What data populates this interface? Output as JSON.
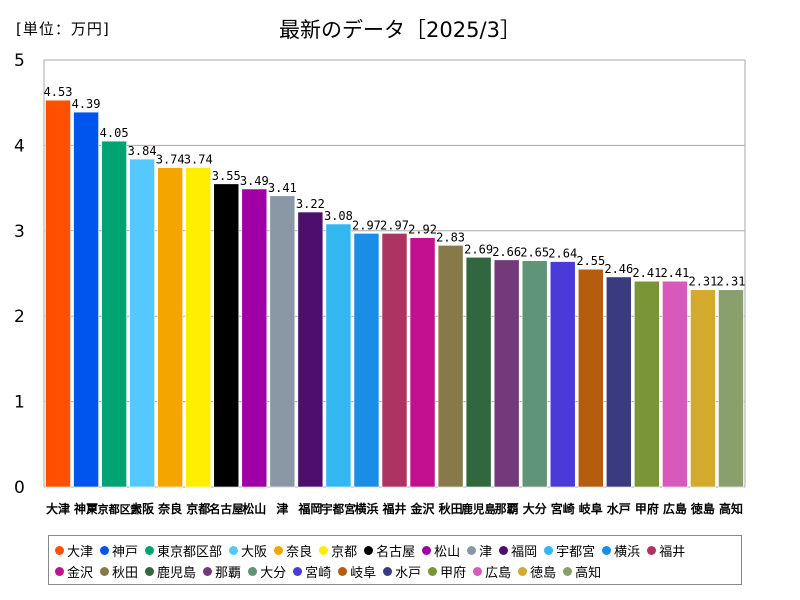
{
  "header": {
    "unit": "[単位：万円]",
    "title": "最新のデータ［2025/3］"
  },
  "chart_data": {
    "type": "bar",
    "title": "最新のデータ［2025/3］",
    "unit_label": "[単位：万円]",
    "xlabel": "",
    "ylabel": "",
    "ylim": [
      0,
      5
    ],
    "yticks": [
      0,
      1,
      2,
      3,
      4,
      5
    ],
    "grid": true,
    "legend_position": "bottom",
    "categories": [
      "大津",
      "神戸",
      "東京都区部",
      "大阪",
      "奈良",
      "京都",
      "名古屋",
      "松山",
      "津",
      "福岡",
      "宇都宮",
      "横浜",
      "福井",
      "金沢",
      "秋田",
      "鹿児島",
      "那覇",
      "大分",
      "宮崎",
      "岐阜",
      "水戸",
      "甲府",
      "広島",
      "徳島",
      "高知"
    ],
    "values": [
      4.53,
      4.39,
      4.05,
      3.84,
      3.74,
      3.74,
      3.55,
      3.49,
      3.41,
      3.22,
      3.08,
      2.97,
      2.97,
      2.92,
      2.83,
      2.69,
      2.66,
      2.65,
      2.64,
      2.55,
      2.46,
      2.41,
      2.41,
      2.31,
      2.31
    ],
    "colors": [
      "#ff5000",
      "#0055ee",
      "#00a373",
      "#55c8ff",
      "#f5a500",
      "#ffee00",
      "#000000",
      "#9e00a6",
      "#8a98a6",
      "#4c0f6e",
      "#33b7f0",
      "#1a8ee6",
      "#ad3462",
      "#c2108e",
      "#877a48",
      "#30673e",
      "#73397a",
      "#609478",
      "#4a3ad8",
      "#b45d10",
      "#3a3a80",
      "#7a9438",
      "#d659bb",
      "#d4aa2c",
      "#8aa06c"
    ]
  }
}
